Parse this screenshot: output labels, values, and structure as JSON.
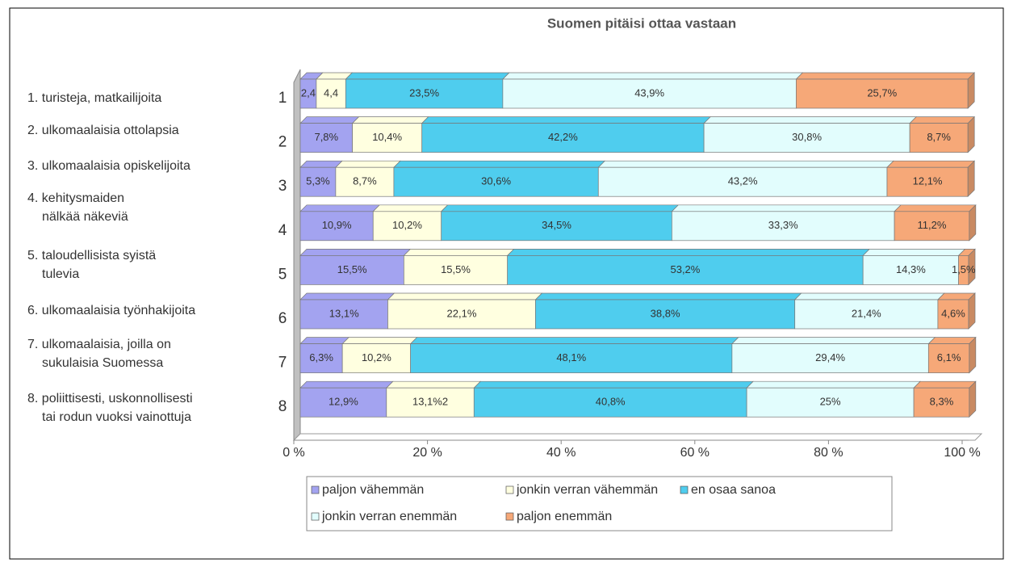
{
  "chart_data": {
    "type": "stacked-bar-horizontal",
    "title": "Suomen pitäisi ottaa vastaan",
    "categories": [
      "1",
      "2",
      "3",
      "4",
      "5",
      "6",
      "7",
      "8"
    ],
    "descriptions": [
      [
        "1. turisteja, matkailijoita"
      ],
      [
        "2. ulkomaalaisia ottolapsia"
      ],
      [
        "3. ulkomaalaisia opiskelijoita"
      ],
      [
        "4. kehitysmaiden",
        "nälkää näkeviä"
      ],
      [
        "5. taloudellisista syistä",
        "tulevia"
      ],
      [
        "6. ulkomaalaisia työnhakijoita"
      ],
      [
        "7. ulkomaalaisia, joilla on",
        "sukulaisia Suomessa"
      ],
      [
        "8. poliittisesti, uskonnollisesti",
        "tai rodun vuoksi vainottuja"
      ]
    ],
    "series": [
      {
        "name": "paljon vähemmän",
        "color": "#a3a3f0",
        "values": [
          2.4,
          7.8,
          5.3,
          10.9,
          15.5,
          13.1,
          6.3,
          12.9
        ],
        "value_labels": [
          "2,4",
          "7,8%",
          "5,3%",
          "10,9%",
          "15,5%",
          "13,1%",
          "6,3%",
          "12,9%"
        ]
      },
      {
        "name": "jonkin verran vähemmän",
        "color": "#ffffe0",
        "values": [
          4.4,
          10.4,
          8.7,
          10.2,
          15.5,
          22.1,
          10.2,
          13.1
        ],
        "value_labels": [
          "4,4",
          "10,4%",
          "8,7%",
          "10,2%",
          "15,5%",
          "22,1%",
          "10,2%",
          "13,1%2"
        ]
      },
      {
        "name": "en osaa sanoa",
        "color": "#4fcdee",
        "values": [
          23.5,
          42.2,
          30.6,
          34.5,
          53.2,
          38.8,
          48.1,
          40.8
        ],
        "value_labels": [
          "23,5%",
          "42,2%",
          "30,6%",
          "34,5%",
          "53,2%",
          "38,8%",
          "48,1%",
          "40,8%"
        ]
      },
      {
        "name": "jonkin verran enemmän",
        "color": "#e2fdfd",
        "values": [
          43.9,
          30.8,
          43.2,
          33.3,
          14.3,
          21.4,
          29.4,
          25
        ],
        "value_labels": [
          "43,9%",
          "30,8%",
          "43,2%",
          "33,3%",
          "14,3%",
          "21,4%",
          "29,4%",
          "25%"
        ]
      },
      {
        "name": "paljon enemmän",
        "color": "#f6a878",
        "values": [
          25.7,
          8.7,
          12.1,
          11.2,
          1.5,
          4.6,
          6.1,
          8.3
        ],
        "value_labels": [
          "25,7%",
          "8,7%",
          "12,1%",
          "11,2%",
          "1,5%",
          "4,6%",
          "6,1%",
          "8,3%"
        ]
      }
    ],
    "xlim": [
      0,
      100
    ],
    "xticks": [
      {
        "value": 0,
        "label": "0 %"
      },
      {
        "value": 20,
        "label": "20 %"
      },
      {
        "value": 40,
        "label": "40 %"
      },
      {
        "value": 60,
        "label": "60 %"
      },
      {
        "value": 80,
        "label": "80 %"
      },
      {
        "value": 100,
        "label": "100 %"
      }
    ]
  }
}
